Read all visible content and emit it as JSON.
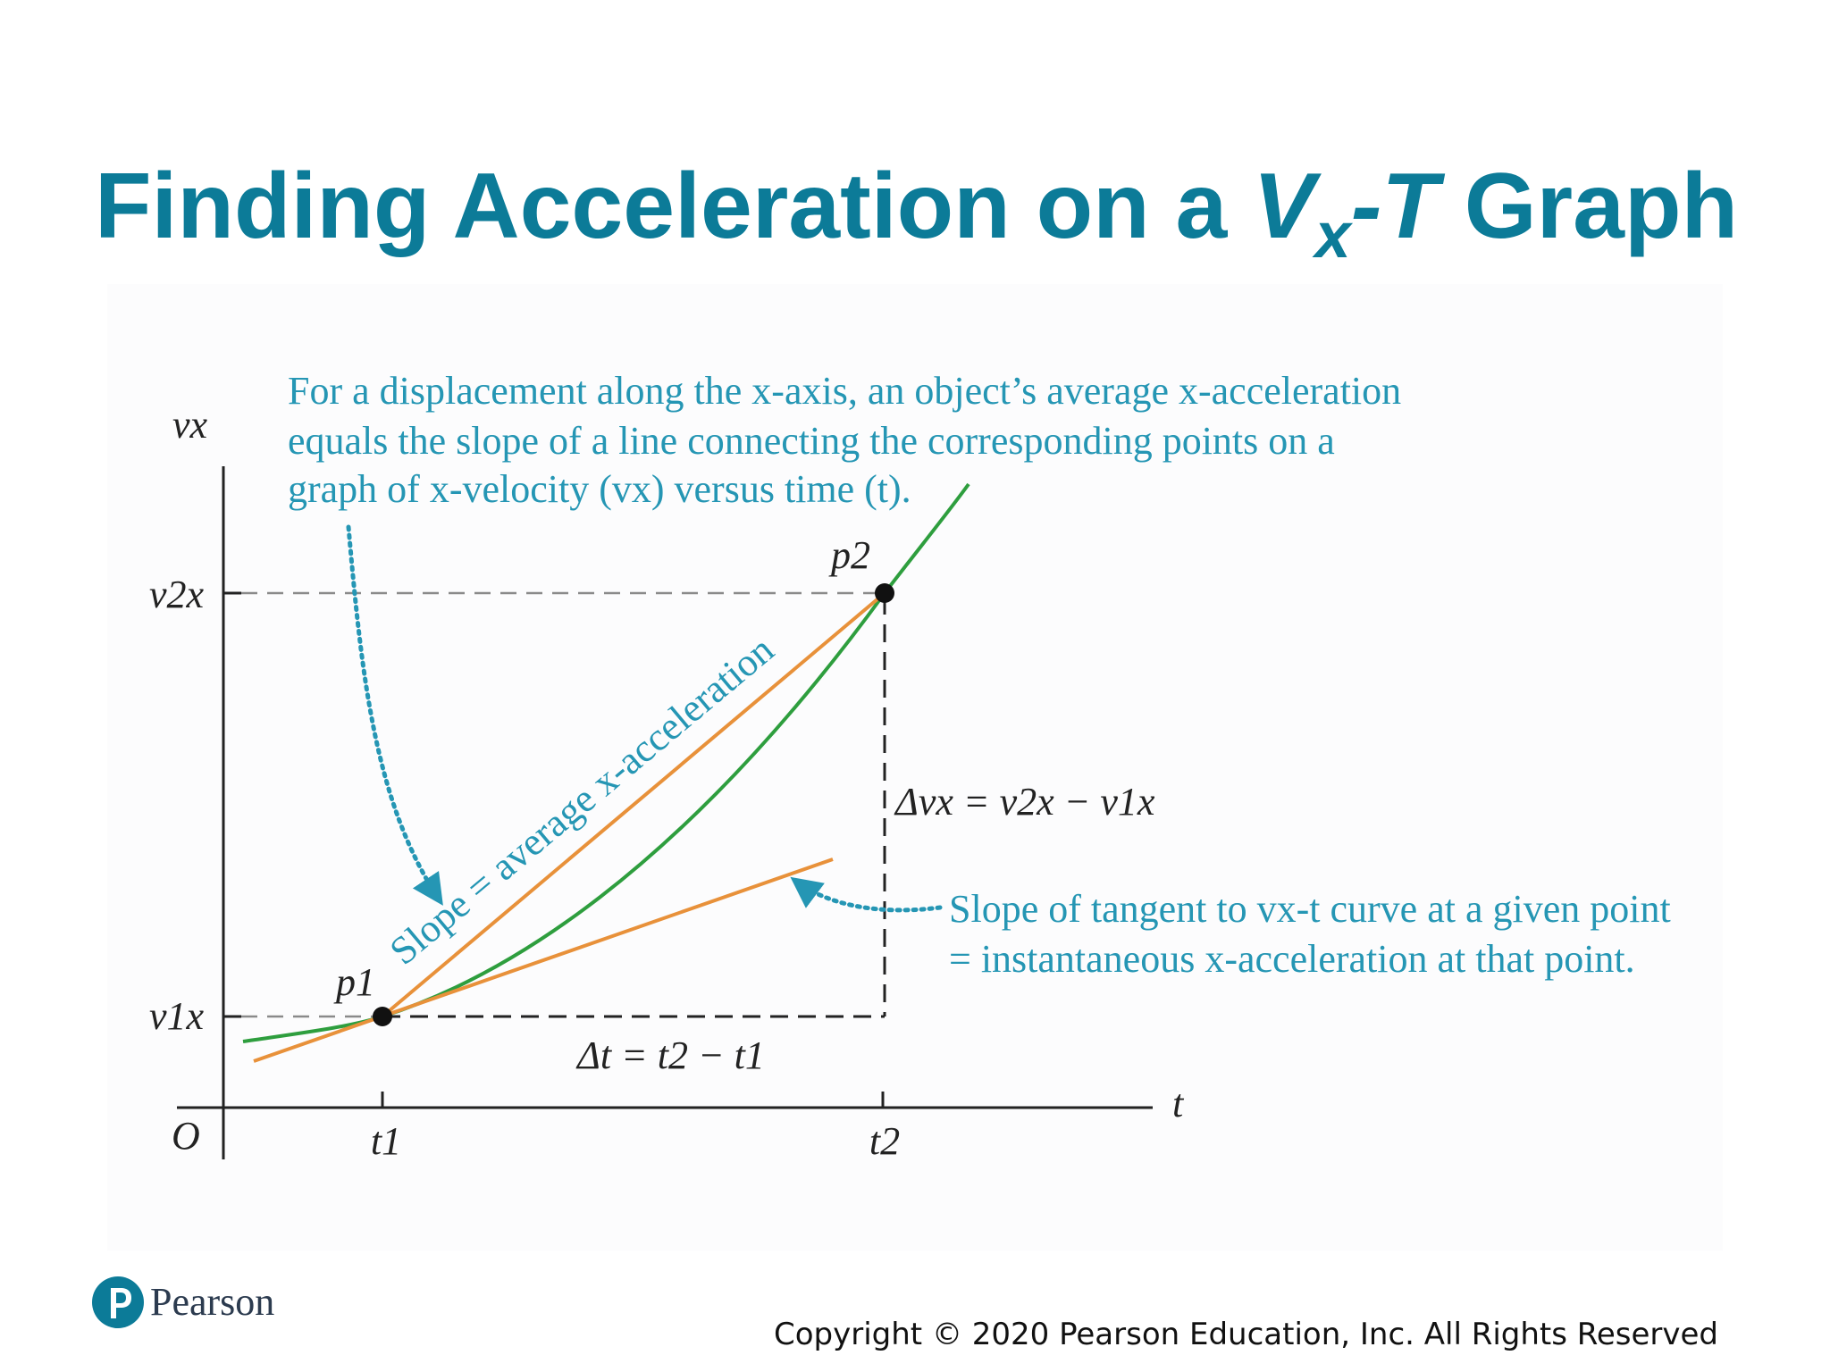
{
  "slide": {
    "title_parts": {
      "lead": "Finding Acceleration on a ",
      "v": "V",
      "sub": "x",
      "dash": "-",
      "t": "T",
      "tail": " Graph"
    },
    "copyright": "Copyright © 2020 Pearson Education, Inc. All Rights Reserved",
    "logo": {
      "text": "Pearson",
      "color": "#0c7b98"
    }
  },
  "diagram": {
    "caption_top": [
      "For a displacement along the x-axis, an object’s average x-acceleration",
      "equals the slope of a line connecting the corresponding points on a",
      "graph of x-velocity (vx) versus time (t)."
    ],
    "caption_right": [
      "Slope of tangent to vx-t curve at a given point",
      "= instantaneous x-acceleration at that point."
    ],
    "secant_label": "Slope = average x-acceleration",
    "axis_labels": {
      "y": "vx",
      "x": "t",
      "origin": "O"
    },
    "tick_labels": {
      "t1": "t1",
      "t2": "t2",
      "v1x": "v1x",
      "v2x": "v2x"
    },
    "points": {
      "p1": "p1",
      "p2": "p2"
    },
    "delta_t": "Δt = t2 − t1",
    "delta_v": "Δvx = v2x − v1x",
    "colors": {
      "curve": "#2e9e3e",
      "lines": "#e8913a",
      "callout": "#2596b4",
      "axes": "#222222"
    }
  }
}
